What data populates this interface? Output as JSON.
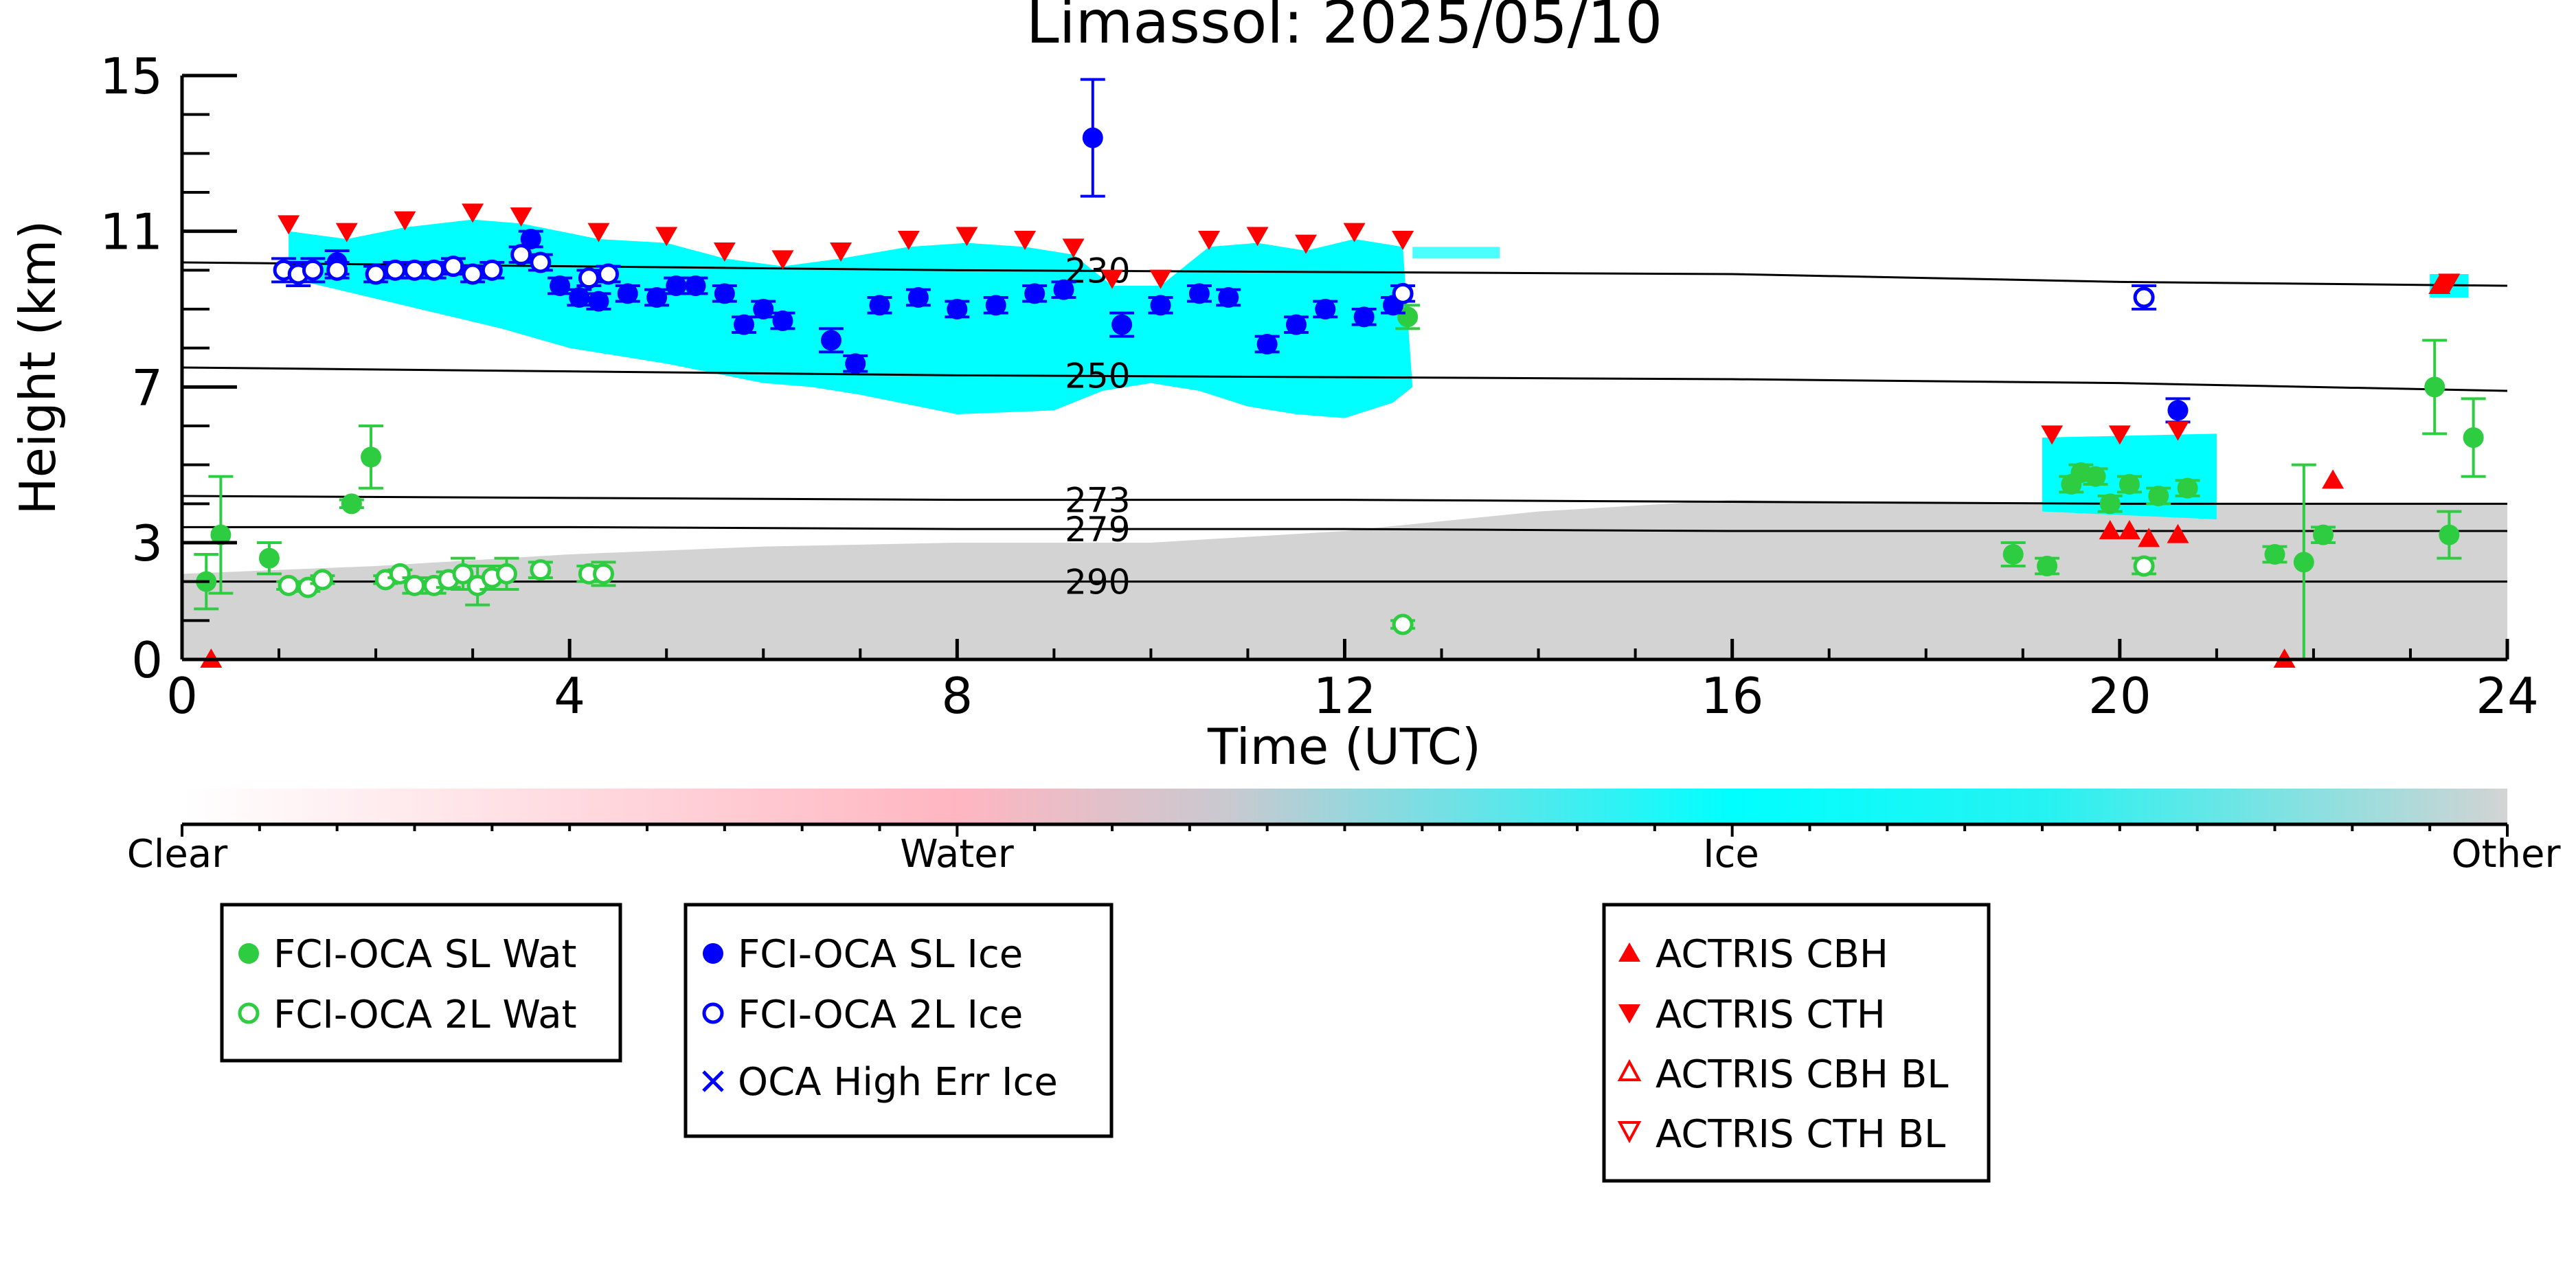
{
  "chart_data": {
    "type": "scatter",
    "title": "Limassol: 2025/05/10",
    "xlabel": "Time (UTC)",
    "ylabel": "Height (km)",
    "xlim": [
      0,
      24
    ],
    "ylim": [
      0,
      15
    ],
    "xticks": [
      0,
      4,
      8,
      12,
      16,
      20,
      24
    ],
    "yticks": [
      0,
      3,
      7,
      11,
      15
    ],
    "grid": false,
    "background_classes": {
      "ticks": [
        "Clear",
        "Water",
        "Ice",
        "Other"
      ],
      "colors": {
        "clear": "#ffffff",
        "water": "#ffb6c1",
        "ice": "#00ffff",
        "other": "#d3d3d3"
      }
    },
    "isotherms": [
      {
        "label": "230",
        "points": [
          [
            0,
            10.2
          ],
          [
            4,
            10.1
          ],
          [
            8,
            10.0
          ],
          [
            12,
            9.95
          ],
          [
            16,
            9.9
          ],
          [
            20,
            9.7
          ],
          [
            24,
            9.6
          ]
        ]
      },
      {
        "label": "250",
        "points": [
          [
            0,
            7.5
          ],
          [
            4,
            7.4
          ],
          [
            8,
            7.3
          ],
          [
            12,
            7.25
          ],
          [
            16,
            7.2
          ],
          [
            20,
            7.1
          ],
          [
            24,
            6.9
          ]
        ]
      },
      {
        "label": "273",
        "points": [
          [
            0,
            4.2
          ],
          [
            4,
            4.15
          ],
          [
            8,
            4.1
          ],
          [
            12,
            4.1
          ],
          [
            16,
            4.05
          ],
          [
            20,
            4.0
          ],
          [
            24,
            4.0
          ]
        ]
      },
      {
        "label": "279",
        "points": [
          [
            0,
            3.4
          ],
          [
            4,
            3.4
          ],
          [
            8,
            3.35
          ],
          [
            12,
            3.35
          ],
          [
            16,
            3.3
          ],
          [
            20,
            3.3
          ],
          [
            24,
            3.3
          ]
        ]
      },
      {
        "label": "290",
        "points": [
          [
            0,
            2.0
          ],
          [
            4,
            2.0
          ],
          [
            8,
            2.0
          ],
          [
            12,
            2.0
          ],
          [
            16,
            2.0
          ],
          [
            20,
            2.0
          ],
          [
            24,
            2.0
          ]
        ]
      }
    ],
    "series": [
      {
        "name": "FCI-OCA SL Wat",
        "marker": "filled-circle",
        "color": "#2ecc40",
        "points": [
          [
            0.25,
            2.0,
            0.7
          ],
          [
            0.4,
            3.2,
            1.5
          ],
          [
            0.9,
            2.6,
            0.4
          ],
          [
            1.75,
            4.0,
            0.1
          ],
          [
            1.95,
            5.2,
            0.8
          ],
          [
            12.65,
            8.8,
            0.3
          ],
          [
            18.9,
            2.7,
            0.3
          ],
          [
            19.25,
            2.4,
            0.2
          ],
          [
            19.5,
            4.5,
            0.2
          ],
          [
            19.6,
            4.8,
            0.2
          ],
          [
            19.75,
            4.7,
            0.2
          ],
          [
            19.9,
            4.0,
            0.2
          ],
          [
            20.1,
            4.5,
            0.2
          ],
          [
            20.4,
            4.2,
            0.2
          ],
          [
            20.7,
            4.4,
            0.2
          ],
          [
            21.6,
            2.7,
            0.2
          ],
          [
            21.9,
            2.5,
            2.5
          ],
          [
            22.1,
            3.2,
            0.2
          ],
          [
            23.25,
            7.0,
            1.2
          ],
          [
            23.4,
            3.2,
            0.6
          ],
          [
            23.65,
            5.7,
            1.0
          ]
        ]
      },
      {
        "name": "FCI-OCA 2L Wat",
        "marker": "open-circle",
        "color": "#2ecc40",
        "points": [
          [
            1.1,
            1.9,
            0.1
          ],
          [
            1.3,
            1.85,
            0.1
          ],
          [
            1.45,
            2.05,
            0.1
          ],
          [
            2.1,
            2.05,
            0.1
          ],
          [
            2.25,
            2.2,
            0.1
          ],
          [
            2.4,
            1.9,
            0.2
          ],
          [
            2.6,
            1.9,
            0.2
          ],
          [
            2.75,
            2.05,
            0.2
          ],
          [
            2.9,
            2.2,
            0.4
          ],
          [
            3.05,
            1.9,
            0.5
          ],
          [
            3.2,
            2.1,
            0.3
          ],
          [
            3.35,
            2.2,
            0.4
          ],
          [
            3.7,
            2.3,
            0.2
          ],
          [
            4.2,
            2.2,
            0.2
          ],
          [
            4.35,
            2.2,
            0.3
          ],
          [
            12.6,
            0.9,
            0.1
          ],
          [
            20.25,
            2.4,
            0.2
          ]
        ]
      },
      {
        "name": "FCI-OCA SL Ice",
        "marker": "filled-circle",
        "color": "#0000ff",
        "points": [
          [
            1.6,
            10.2,
            0.3
          ],
          [
            3.6,
            10.8,
            0.2
          ],
          [
            3.9,
            9.6,
            0.2
          ],
          [
            4.1,
            9.3,
            0.2
          ],
          [
            4.3,
            9.2,
            0.2
          ],
          [
            4.6,
            9.4,
            0.2
          ],
          [
            4.9,
            9.3,
            0.2
          ],
          [
            5.1,
            9.6,
            0.2
          ],
          [
            5.3,
            9.6,
            0.2
          ],
          [
            5.6,
            9.4,
            0.2
          ],
          [
            5.8,
            8.6,
            0.2
          ],
          [
            6.0,
            9.0,
            0.2
          ],
          [
            6.2,
            8.7,
            0.2
          ],
          [
            6.7,
            8.2,
            0.3
          ],
          [
            6.95,
            7.6,
            0.2
          ],
          [
            7.2,
            9.1,
            0.2
          ],
          [
            7.6,
            9.3,
            0.2
          ],
          [
            8.0,
            9.0,
            0.2
          ],
          [
            8.4,
            9.1,
            0.2
          ],
          [
            8.8,
            9.4,
            0.2
          ],
          [
            9.1,
            9.5,
            0.2
          ],
          [
            9.4,
            13.4,
            1.5
          ],
          [
            9.7,
            8.6,
            0.3
          ],
          [
            10.1,
            9.1,
            0.2
          ],
          [
            10.5,
            9.4,
            0.2
          ],
          [
            10.8,
            9.3,
            0.2
          ],
          [
            11.2,
            8.1,
            0.2
          ],
          [
            11.5,
            8.6,
            0.2
          ],
          [
            11.8,
            9.0,
            0.2
          ],
          [
            12.2,
            8.8,
            0.2
          ],
          [
            12.5,
            9.1,
            0.2
          ],
          [
            20.6,
            6.4,
            0.3
          ]
        ]
      },
      {
        "name": "FCI-OCA 2L Ice",
        "marker": "open-circle",
        "color": "#0000ff",
        "points": [
          [
            1.05,
            10.0,
            0.3
          ],
          [
            1.2,
            9.9,
            0.3
          ],
          [
            1.35,
            10.0,
            0.3
          ],
          [
            1.6,
            10.0,
            0.2
          ],
          [
            2.0,
            9.9,
            0.2
          ],
          [
            2.2,
            10.0,
            0.2
          ],
          [
            2.4,
            10.0,
            0.2
          ],
          [
            2.6,
            10.0,
            0.2
          ],
          [
            2.8,
            10.1,
            0.2
          ],
          [
            3.0,
            9.9,
            0.2
          ],
          [
            3.2,
            10.0,
            0.2
          ],
          [
            3.5,
            10.4,
            0.2
          ],
          [
            3.7,
            10.2,
            0.2
          ],
          [
            4.2,
            9.8,
            0.2
          ],
          [
            4.4,
            9.9,
            0.2
          ],
          [
            12.6,
            9.4,
            0.2
          ],
          [
            20.25,
            9.3,
            0.3
          ]
        ]
      },
      {
        "name": "OCA High Err Ice",
        "marker": "x",
        "color": "#0000ff",
        "points": []
      },
      {
        "name": "ACTRIS CBH",
        "marker": "filled-triangle-up",
        "color": "#ff0000",
        "points": [
          [
            0.3,
            0.0
          ],
          [
            19.9,
            3.3
          ],
          [
            20.1,
            3.3
          ],
          [
            20.3,
            3.1
          ],
          [
            20.6,
            3.2
          ],
          [
            21.7,
            0.0
          ],
          [
            22.2,
            4.6
          ],
          [
            23.3,
            9.6
          ]
        ]
      },
      {
        "name": "ACTRIS CTH",
        "marker": "filled-triangle-down",
        "color": "#ff0000",
        "points": [
          [
            1.1,
            11.2
          ],
          [
            1.7,
            11.0
          ],
          [
            2.3,
            11.3
          ],
          [
            3.0,
            11.5
          ],
          [
            3.5,
            11.4
          ],
          [
            4.3,
            11.0
          ],
          [
            5.0,
            10.9
          ],
          [
            5.6,
            10.5
          ],
          [
            6.2,
            10.3
          ],
          [
            6.8,
            10.5
          ],
          [
            7.5,
            10.8
          ],
          [
            8.1,
            10.9
          ],
          [
            8.7,
            10.8
          ],
          [
            9.2,
            10.6
          ],
          [
            9.6,
            9.8
          ],
          [
            10.1,
            9.8
          ],
          [
            10.6,
            10.8
          ],
          [
            11.1,
            10.9
          ],
          [
            11.6,
            10.7
          ],
          [
            12.1,
            11.0
          ],
          [
            12.6,
            10.8
          ],
          [
            19.3,
            5.8
          ],
          [
            20.0,
            5.8
          ],
          [
            20.6,
            5.9
          ],
          [
            23.4,
            9.7
          ]
        ]
      },
      {
        "name": "ACTRIS CBH BL",
        "marker": "open-triangle-up",
        "color": "#ff0000",
        "points": []
      },
      {
        "name": "ACTRIS CTH BL",
        "marker": "open-triangle-down",
        "color": "#ff0000",
        "points": []
      }
    ],
    "ctb_lower": [
      [
        3.3,
        8.5
      ],
      [
        4.0,
        8.0
      ],
      [
        5.0,
        7.6
      ],
      [
        6.0,
        7.1
      ],
      [
        6.5,
        7.0
      ],
      [
        7.0,
        6.8
      ],
      [
        8.0,
        6.3
      ],
      [
        9.0,
        6.4
      ],
      [
        9.5,
        6.9
      ],
      [
        10.0,
        7.1
      ],
      [
        10.5,
        6.9
      ],
      [
        11.0,
        6.5
      ],
      [
        11.5,
        6.3
      ],
      [
        12.0,
        6.2
      ],
      [
        12.5,
        6.6
      ],
      [
        12.7,
        7.0
      ]
    ],
    "legends": [
      {
        "entries": [
          "FCI-OCA SL Wat",
          "FCI-OCA 2L Wat"
        ]
      },
      {
        "entries": [
          "FCI-OCA SL Ice",
          "FCI-OCA 2L Ice",
          "OCA High Err Ice"
        ]
      },
      {
        "entries": [
          "ACTRIS CBH",
          "ACTRIS CTH",
          "ACTRIS CBH BL",
          "ACTRIS CTH BL"
        ]
      }
    ]
  }
}
